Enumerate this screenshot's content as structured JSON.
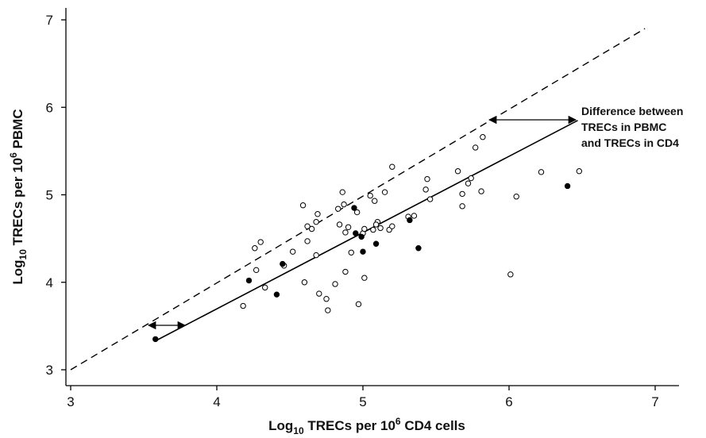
{
  "chart_data": {
    "type": "scatter",
    "title": "",
    "xlabel": {
      "prefix": "Log",
      "sub": "10",
      "middle": " TRECs per 10",
      "sup": "6",
      "suffix": " CD4 cells"
    },
    "ylabel": {
      "prefix": "Log",
      "sub": "10",
      "middle": " TRECs per 10",
      "sup": "6",
      "suffix": " PBMC"
    },
    "xlim": [
      3,
      7
    ],
    "ylim": [
      3,
      7
    ],
    "x_ticks": [
      "3",
      "4",
      "5",
      "6",
      "7"
    ],
    "y_ticks": [
      "3",
      "4",
      "5",
      "6",
      "7"
    ],
    "grid": false,
    "annotation": {
      "lines": [
        "Difference between",
        "TRECs in PBMC",
        "and TRECs in CD4"
      ]
    },
    "reference_line": {
      "style": "dashed",
      "color": "#000000",
      "x": [
        3.0,
        6.93
      ],
      "y": [
        3.0,
        6.9
      ]
    },
    "fit_line": {
      "style": "solid",
      "color": "#000000",
      "x": [
        3.58,
        6.47
      ],
      "y": [
        3.33,
        5.85
      ]
    },
    "series": [
      {
        "marker": "open-circle",
        "points": [
          [
            4.18,
            3.73
          ],
          [
            4.26,
            4.39
          ],
          [
            4.27,
            4.14
          ],
          [
            4.3,
            4.46
          ],
          [
            4.33,
            3.94
          ],
          [
            4.52,
            4.35
          ],
          [
            4.59,
            4.88
          ],
          [
            4.6,
            4.0
          ],
          [
            4.62,
            4.64
          ],
          [
            4.62,
            4.47
          ],
          [
            4.65,
            4.61
          ],
          [
            4.68,
            4.69
          ],
          [
            4.68,
            4.31
          ],
          [
            4.69,
            4.78
          ],
          [
            4.7,
            3.87
          ],
          [
            4.75,
            3.81
          ],
          [
            4.76,
            3.68
          ],
          [
            4.81,
            3.98
          ],
          [
            4.83,
            4.84
          ],
          [
            4.84,
            4.66
          ],
          [
            4.86,
            5.03
          ],
          [
            4.87,
            4.89
          ],
          [
            4.88,
            4.12
          ],
          [
            4.88,
            4.57
          ],
          [
            4.9,
            4.63
          ],
          [
            4.92,
            4.34
          ],
          [
            4.96,
            4.8
          ],
          [
            4.97,
            3.75
          ],
          [
            5.0,
            4.56
          ],
          [
            5.01,
            4.05
          ],
          [
            5.01,
            4.61
          ],
          [
            5.05,
            4.99
          ],
          [
            5.07,
            4.6
          ],
          [
            5.08,
            4.93
          ],
          [
            5.1,
            4.69
          ],
          [
            5.12,
            4.62
          ],
          [
            5.15,
            5.03
          ],
          [
            5.18,
            4.6
          ],
          [
            5.2,
            5.32
          ],
          [
            5.2,
            4.64
          ],
          [
            5.31,
            4.75
          ],
          [
            5.35,
            4.76
          ],
          [
            5.43,
            5.06
          ],
          [
            5.44,
            5.18
          ],
          [
            5.46,
            4.95
          ],
          [
            5.65,
            5.27
          ],
          [
            5.68,
            4.87
          ],
          [
            5.68,
            5.01
          ],
          [
            5.72,
            5.13
          ],
          [
            5.74,
            5.19
          ],
          [
            5.77,
            5.54
          ],
          [
            5.81,
            5.04
          ],
          [
            5.82,
            5.66
          ],
          [
            6.01,
            4.09
          ],
          [
            6.05,
            4.98
          ],
          [
            6.22,
            5.26
          ],
          [
            6.48,
            5.27
          ],
          [
            4.46,
            4.19
          ],
          [
            5.09,
            4.66
          ]
        ]
      },
      {
        "marker": "filled-circle",
        "points": [
          [
            3.58,
            3.35
          ],
          [
            4.22,
            4.02
          ],
          [
            4.41,
            3.86
          ],
          [
            4.45,
            4.21
          ],
          [
            4.94,
            4.85
          ],
          [
            4.95,
            4.56
          ],
          [
            4.99,
            4.52
          ],
          [
            5.0,
            4.35
          ],
          [
            5.09,
            4.44
          ],
          [
            5.32,
            4.71
          ],
          [
            5.38,
            4.39
          ],
          [
            6.4,
            5.1
          ]
        ]
      }
    ]
  }
}
